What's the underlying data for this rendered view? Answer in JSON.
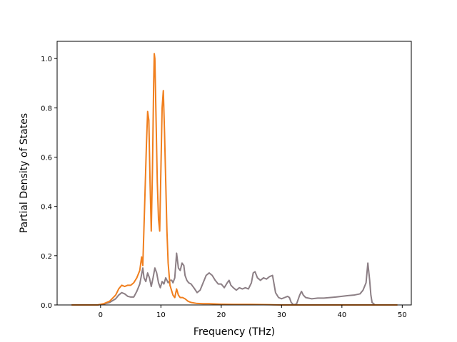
{
  "chart_data": {
    "type": "line",
    "title": "",
    "xlabel": "Frequency (THz)",
    "ylabel": "Partial Density of States",
    "xlim": [
      -7.2,
      51.5
    ],
    "ylim": [
      0.0,
      1.07
    ],
    "xticks": [
      0,
      10,
      20,
      30,
      40,
      50
    ],
    "yticks": [
      0.0,
      0.2,
      0.4,
      0.6,
      0.8,
      1.0
    ],
    "xtick_labels": [
      "0",
      "10",
      "20",
      "30",
      "40",
      "50"
    ],
    "ytick_labels": [
      "0.0",
      "0.2",
      "0.4",
      "0.6",
      "0.8",
      "1.0"
    ],
    "grid": false,
    "legend": "none",
    "series": [
      {
        "color": "#8c7f85",
        "points": [
          [
            -4.8,
            0.0
          ],
          [
            -0.5,
            0.0
          ],
          [
            0.5,
            0.003
          ],
          [
            1.5,
            0.01
          ],
          [
            2.5,
            0.025
          ],
          [
            3.0,
            0.04
          ],
          [
            3.5,
            0.05
          ],
          [
            4.0,
            0.045
          ],
          [
            4.5,
            0.035
          ],
          [
            5.0,
            0.032
          ],
          [
            5.5,
            0.032
          ],
          [
            6.0,
            0.055
          ],
          [
            6.5,
            0.085
          ],
          [
            7.0,
            0.15
          ],
          [
            7.2,
            0.11
          ],
          [
            7.5,
            0.095
          ],
          [
            7.8,
            0.13
          ],
          [
            8.1,
            0.11
          ],
          [
            8.4,
            0.075
          ],
          [
            8.7,
            0.11
          ],
          [
            9.0,
            0.15
          ],
          [
            9.3,
            0.13
          ],
          [
            9.6,
            0.09
          ],
          [
            9.9,
            0.07
          ],
          [
            10.2,
            0.095
          ],
          [
            10.5,
            0.085
          ],
          [
            10.8,
            0.11
          ],
          [
            11.2,
            0.09
          ],
          [
            11.5,
            0.1
          ],
          [
            11.8,
            0.1
          ],
          [
            12.0,
            0.09
          ],
          [
            12.3,
            0.11
          ],
          [
            12.6,
            0.21
          ],
          [
            12.9,
            0.15
          ],
          [
            13.2,
            0.14
          ],
          [
            13.5,
            0.17
          ],
          [
            13.8,
            0.16
          ],
          [
            14.0,
            0.12
          ],
          [
            14.3,
            0.1
          ],
          [
            14.6,
            0.09
          ],
          [
            15.0,
            0.085
          ],
          [
            15.3,
            0.075
          ],
          [
            15.6,
            0.065
          ],
          [
            16.0,
            0.05
          ],
          [
            16.5,
            0.06
          ],
          [
            17.0,
            0.09
          ],
          [
            17.5,
            0.12
          ],
          [
            18.0,
            0.13
          ],
          [
            18.5,
            0.12
          ],
          [
            19.0,
            0.1
          ],
          [
            19.5,
            0.085
          ],
          [
            20.0,
            0.085
          ],
          [
            20.5,
            0.07
          ],
          [
            21.0,
            0.09
          ],
          [
            21.3,
            0.1
          ],
          [
            21.6,
            0.08
          ],
          [
            22.0,
            0.07
          ],
          [
            22.5,
            0.06
          ],
          [
            23.0,
            0.07
          ],
          [
            23.5,
            0.065
          ],
          [
            24.0,
            0.07
          ],
          [
            24.5,
            0.065
          ],
          [
            25.0,
            0.09
          ],
          [
            25.3,
            0.13
          ],
          [
            25.6,
            0.135
          ],
          [
            26.0,
            0.11
          ],
          [
            26.5,
            0.1
          ],
          [
            27.0,
            0.11
          ],
          [
            27.5,
            0.105
          ],
          [
            28.0,
            0.115
          ],
          [
            28.5,
            0.12
          ],
          [
            29.0,
            0.05
          ],
          [
            29.5,
            0.03
          ],
          [
            30.0,
            0.025
          ],
          [
            30.5,
            0.03
          ],
          [
            31.0,
            0.035
          ],
          [
            31.3,
            0.03
          ],
          [
            31.6,
            0.01
          ],
          [
            32.0,
            0.0
          ],
          [
            32.5,
            0.005
          ],
          [
            33.0,
            0.04
          ],
          [
            33.3,
            0.055
          ],
          [
            33.6,
            0.04
          ],
          [
            34.0,
            0.03
          ],
          [
            35.0,
            0.025
          ],
          [
            36.0,
            0.028
          ],
          [
            37.0,
            0.028
          ],
          [
            38.0,
            0.03
          ],
          [
            39.0,
            0.032
          ],
          [
            40.0,
            0.035
          ],
          [
            41.0,
            0.038
          ],
          [
            42.0,
            0.04
          ],
          [
            43.0,
            0.045
          ],
          [
            43.5,
            0.06
          ],
          [
            44.0,
            0.09
          ],
          [
            44.3,
            0.17
          ],
          [
            44.6,
            0.1
          ],
          [
            44.8,
            0.04
          ],
          [
            45.0,
            0.01
          ],
          [
            45.5,
            0.0
          ],
          [
            49.2,
            0.0
          ]
        ]
      },
      {
        "color": "#f07f1e",
        "points": [
          [
            -4.8,
            0.0
          ],
          [
            -0.5,
            0.0
          ],
          [
            0.5,
            0.005
          ],
          [
            1.5,
            0.015
          ],
          [
            2.5,
            0.04
          ],
          [
            3.0,
            0.065
          ],
          [
            3.5,
            0.08
          ],
          [
            4.0,
            0.075
          ],
          [
            4.5,
            0.08
          ],
          [
            5.0,
            0.08
          ],
          [
            5.5,
            0.09
          ],
          [
            6.0,
            0.11
          ],
          [
            6.5,
            0.14
          ],
          [
            6.8,
            0.195
          ],
          [
            7.0,
            0.16
          ],
          [
            7.3,
            0.4
          ],
          [
            7.6,
            0.65
          ],
          [
            7.8,
            0.785
          ],
          [
            8.0,
            0.75
          ],
          [
            8.2,
            0.5
          ],
          [
            8.4,
            0.3
          ],
          [
            8.6,
            0.55
          ],
          [
            8.8,
            0.9
          ],
          [
            8.9,
            1.02
          ],
          [
            9.0,
            1.0
          ],
          [
            9.2,
            0.75
          ],
          [
            9.4,
            0.5
          ],
          [
            9.6,
            0.35
          ],
          [
            9.8,
            0.3
          ],
          [
            10.0,
            0.55
          ],
          [
            10.2,
            0.8
          ],
          [
            10.4,
            0.87
          ],
          [
            10.6,
            0.7
          ],
          [
            10.8,
            0.5
          ],
          [
            11.0,
            0.3
          ],
          [
            11.2,
            0.17
          ],
          [
            11.5,
            0.08
          ],
          [
            12.0,
            0.04
          ],
          [
            12.3,
            0.03
          ],
          [
            12.6,
            0.065
          ],
          [
            12.9,
            0.04
          ],
          [
            13.2,
            0.03
          ],
          [
            13.6,
            0.03
          ],
          [
            14.0,
            0.025
          ],
          [
            14.5,
            0.015
          ],
          [
            15.0,
            0.01
          ],
          [
            16.0,
            0.006
          ],
          [
            17.0,
            0.005
          ],
          [
            18.0,
            0.005
          ],
          [
            19.0,
            0.004
          ],
          [
            20.0,
            0.003
          ],
          [
            22.0,
            0.002
          ],
          [
            25.0,
            0.002
          ],
          [
            28.0,
            0.001
          ],
          [
            30.0,
            0.0
          ],
          [
            49.2,
            0.0
          ]
        ]
      }
    ]
  }
}
